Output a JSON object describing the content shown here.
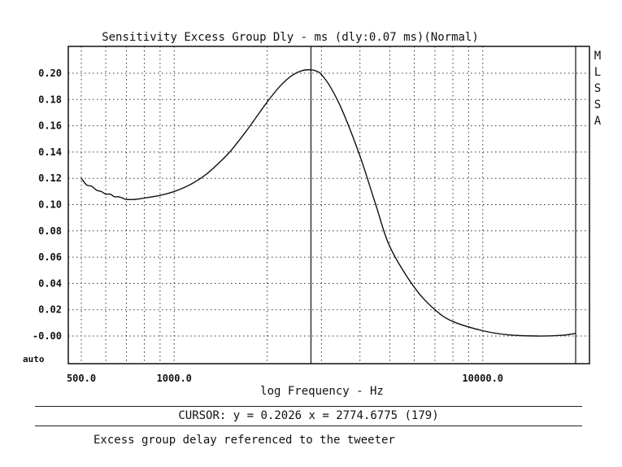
{
  "chart_data": {
    "type": "line",
    "title": "Sensitivity Excess Group Dly - ms (dly:0.07 ms)(Normal)",
    "xlabel": "log Frequency - Hz",
    "ylabel": "",
    "x_scale": "log",
    "xlim": [
      500,
      20000
    ],
    "ylim": [
      -0.01,
      0.21
    ],
    "y_ticks": [
      0.2,
      0.18,
      0.16,
      0.14,
      0.12,
      0.1,
      0.08,
      0.06,
      0.04,
      0.02,
      0.0
    ],
    "y_tick_labels": [
      "0.20",
      "0.18",
      "0.16",
      "0.14",
      "0.12",
      "0.10",
      "0.08",
      "0.06",
      "0.04",
      "0.02",
      "-0.00"
    ],
    "y_bottom_label": "auto",
    "x_tick_labels": [
      {
        "value": 500,
        "label": "500.0"
      },
      {
        "value": 1000,
        "label": "1000.0"
      },
      {
        "value": 10000,
        "label": "10000.0"
      }
    ],
    "grid": true,
    "side_label": [
      "M",
      "L",
      "S",
      "S",
      "A"
    ],
    "cursor_x": 2774.6775,
    "series": [
      {
        "x": [
          500,
          520,
          540,
          560,
          580,
          600,
          620,
          640,
          660,
          680,
          700,
          750,
          800,
          900,
          1000,
          1100,
          1200,
          1300,
          1400,
          1500,
          1600,
          1700,
          1800,
          2000,
          2200,
          2400,
          2600,
          2774.68,
          2900,
          3000,
          3200,
          3500,
          4000,
          4500,
          5000,
          6000,
          7000,
          8000,
          10000,
          12000,
          15000,
          18000,
          20000
        ],
        "y": [
          0.12,
          0.115,
          0.114,
          0.111,
          0.11,
          0.108,
          0.108,
          0.106,
          0.106,
          0.105,
          0.104,
          0.104,
          0.105,
          0.107,
          0.11,
          0.114,
          0.119,
          0.125,
          0.132,
          0.139,
          0.147,
          0.155,
          0.163,
          0.178,
          0.19,
          0.198,
          0.202,
          0.2026,
          0.2015,
          0.199,
          0.19,
          0.172,
          0.137,
          0.1,
          0.068,
          0.037,
          0.02,
          0.011,
          0.004,
          0.001,
          0.0,
          0.0005,
          0.002
        ]
      }
    ]
  },
  "cursor_readout": "CURSOR: y = 0.2026 x = 2774.6775 (179)",
  "caption": "Excess group delay referenced to the tweeter"
}
